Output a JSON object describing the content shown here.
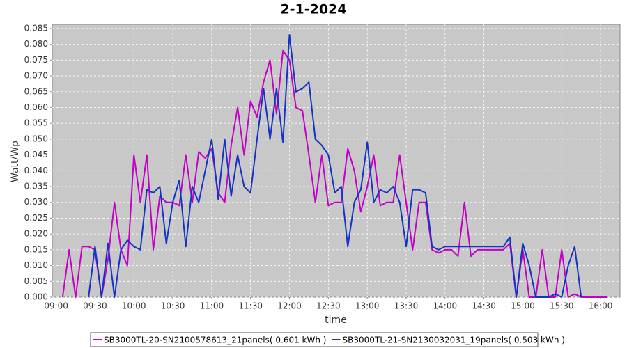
{
  "chart_data": {
    "type": "line",
    "title": "2-1-2024",
    "x_label": "time",
    "y_label": "Watt/Wp",
    "x": [
      "09:00",
      "09:05",
      "09:10",
      "09:15",
      "09:20",
      "09:25",
      "09:30",
      "09:35",
      "09:40",
      "09:45",
      "09:50",
      "09:55",
      "10:00",
      "10:05",
      "10:10",
      "10:15",
      "10:20",
      "10:25",
      "10:30",
      "10:35",
      "10:40",
      "10:45",
      "10:50",
      "10:55",
      "11:00",
      "11:05",
      "11:10",
      "11:15",
      "11:20",
      "11:25",
      "11:30",
      "11:35",
      "11:40",
      "11:45",
      "11:50",
      "11:55",
      "12:00",
      "12:05",
      "12:10",
      "12:15",
      "12:20",
      "12:25",
      "12:30",
      "12:35",
      "12:40",
      "12:45",
      "12:50",
      "12:55",
      "13:00",
      "13:05",
      "13:10",
      "13:15",
      "13:20",
      "13:25",
      "13:30",
      "13:35",
      "13:40",
      "13:45",
      "13:50",
      "13:55",
      "14:00",
      "14:05",
      "14:10",
      "14:15",
      "14:20",
      "14:25",
      "14:30",
      "14:35",
      "14:40",
      "14:45",
      "14:50",
      "14:55",
      "15:00",
      "15:05",
      "15:10",
      "15:15",
      "15:20",
      "15:25",
      "15:30",
      "15:35",
      "15:40",
      "15:45",
      "15:50",
      "15:55",
      "16:00",
      "16:05"
    ],
    "series": [
      {
        "name": "SB3000TL-20-SN2100578613_21panels( 0.601 kWh )",
        "color": "#c400c4",
        "values": [
          null,
          0.0,
          0.015,
          0.0,
          0.016,
          0.016,
          0.015,
          0.0,
          0.012,
          0.03,
          0.015,
          0.01,
          0.045,
          0.03,
          0.045,
          0.015,
          0.032,
          0.03,
          0.03,
          0.029,
          0.045,
          0.03,
          0.046,
          0.044,
          0.047,
          0.033,
          0.03,
          0.048,
          0.06,
          0.045,
          0.062,
          0.057,
          0.068,
          0.075,
          0.058,
          0.078,
          0.075,
          0.06,
          0.059,
          0.045,
          0.03,
          0.045,
          0.029,
          0.03,
          0.03,
          0.047,
          0.04,
          0.027,
          0.035,
          0.045,
          0.029,
          0.03,
          0.03,
          0.045,
          0.03,
          0.015,
          0.03,
          0.03,
          0.015,
          0.014,
          0.015,
          0.015,
          0.013,
          0.03,
          0.013,
          0.015,
          0.015,
          0.015,
          0.015,
          0.015,
          0.017,
          0.0,
          0.015,
          0.0,
          0.0,
          0.015,
          0.0,
          0.0,
          0.015,
          0.0,
          0.001,
          0.0,
          0.0,
          0.0,
          0.0,
          0.0
        ]
      },
      {
        "name": "SB3000TL-21-SN2130032031_19panels( 0.503 kWh )",
        "color": "#1433c4",
        "values": [
          null,
          null,
          null,
          null,
          null,
          0.0,
          0.016,
          0.0,
          0.017,
          0.0,
          0.015,
          0.018,
          0.016,
          0.015,
          0.034,
          0.033,
          0.035,
          0.017,
          0.03,
          0.037,
          0.016,
          0.035,
          0.03,
          0.04,
          0.05,
          0.031,
          0.05,
          0.032,
          0.045,
          0.035,
          0.033,
          0.05,
          0.066,
          0.05,
          0.066,
          0.049,
          0.083,
          0.065,
          0.066,
          0.068,
          0.05,
          0.048,
          0.045,
          0.033,
          0.035,
          0.016,
          0.03,
          0.034,
          0.049,
          0.03,
          0.034,
          0.033,
          0.035,
          0.03,
          0.016,
          0.034,
          0.034,
          0.033,
          0.016,
          0.015,
          0.016,
          0.016,
          0.016,
          0.016,
          0.016,
          0.016,
          0.016,
          0.016,
          0.016,
          0.016,
          0.019,
          0.0,
          0.017,
          0.01,
          0.0,
          0.0,
          0.0,
          0.001,
          0.0,
          0.01,
          0.016,
          0.0,
          null,
          null,
          null,
          null
        ]
      }
    ],
    "xlim": [
      "08:57",
      "16:15"
    ],
    "xticks": [
      "09:00",
      "09:30",
      "10:00",
      "10:30",
      "11:00",
      "11:30",
      "12:00",
      "12:30",
      "13:00",
      "13:30",
      "14:00",
      "14:30",
      "15:00",
      "15:30",
      "16:00"
    ],
    "ylim": [
      0,
      0.0863
    ],
    "yticks": [
      {
        "value": 0,
        "label": "0.000"
      },
      {
        "value": 0.005,
        "label": "0.005"
      },
      {
        "value": 0.01,
        "label": "0.010"
      },
      {
        "value": 0.015,
        "label": "0.015"
      },
      {
        "value": 0.02,
        "label": "0.020"
      },
      {
        "value": 0.025,
        "label": "0.025"
      },
      {
        "value": 0.03,
        "label": "0.030"
      },
      {
        "value": 0.035,
        "label": "0.035"
      },
      {
        "value": 0.04,
        "label": "0.040"
      },
      {
        "value": 0.045,
        "label": "0.045"
      },
      {
        "value": 0.05,
        "label": "0.050"
      },
      {
        "value": 0.055,
        "label": "0.055"
      },
      {
        "value": 0.06,
        "label": "0.060"
      },
      {
        "value": 0.065,
        "label": "0.065"
      },
      {
        "value": 0.07,
        "label": "0.070"
      },
      {
        "value": 0.075,
        "label": "0.075"
      },
      {
        "value": 0.08,
        "label": "0.080"
      },
      {
        "value": 0.085,
        "label": "0.085"
      }
    ],
    "grid": true,
    "legend": "bottom"
  }
}
